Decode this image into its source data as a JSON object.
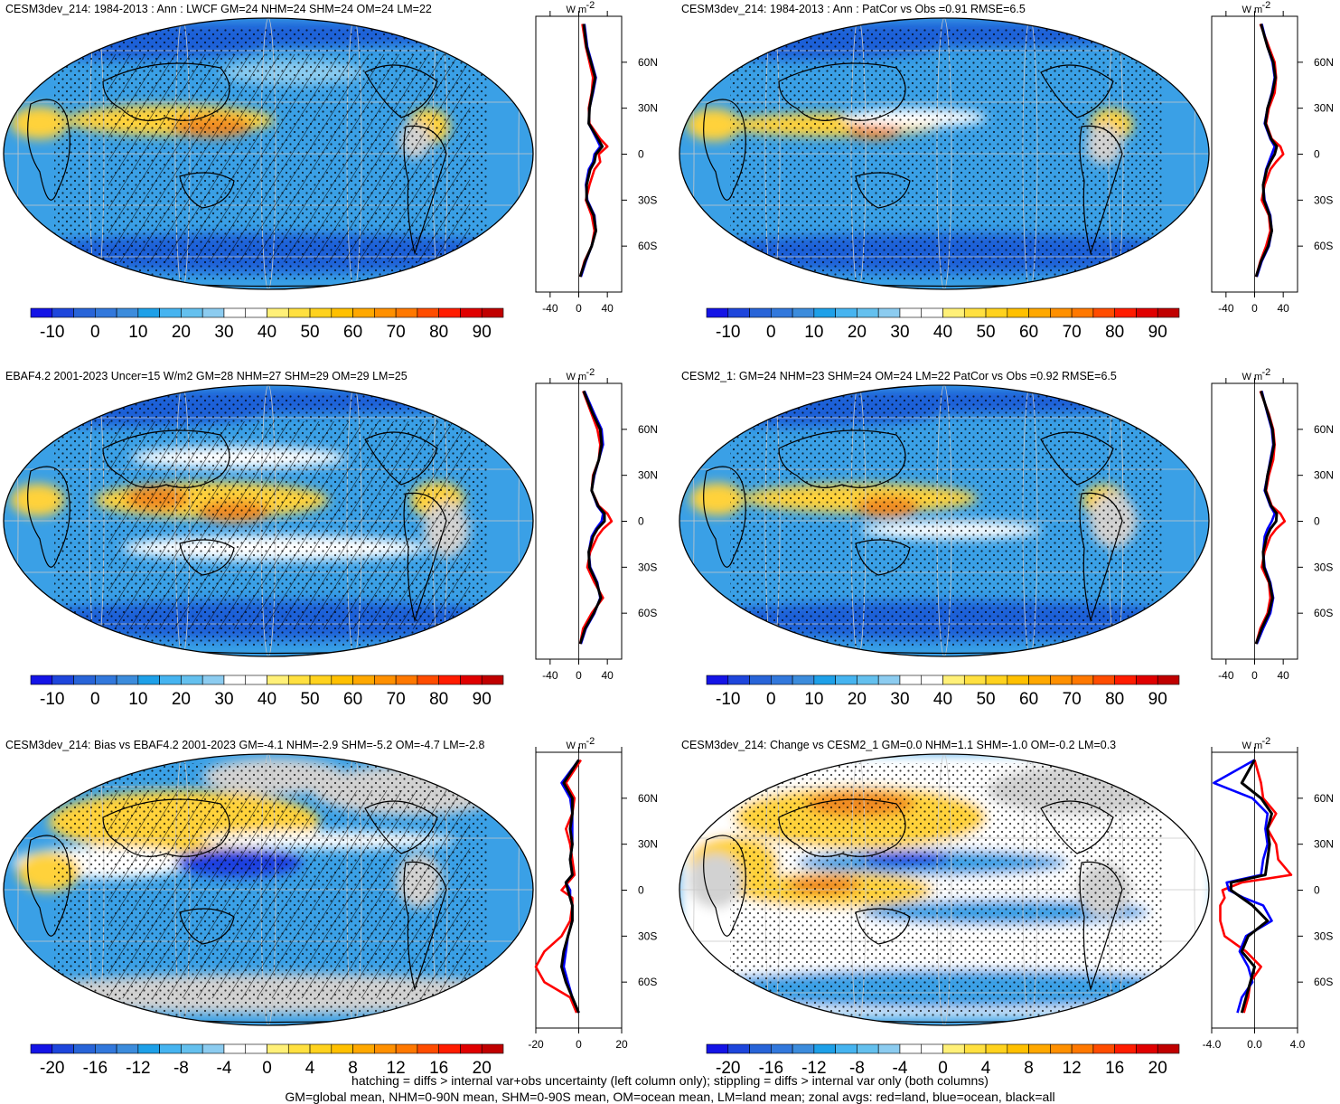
{
  "colors": {
    "ocean_mid": "#3aa0e6",
    "ocean_dark": "#1c60d8",
    "grey_land": "#d2d2d2",
    "positive_band": "#ffd23a",
    "hot": "#f08a20",
    "neg_blue": "#1c3fe0",
    "zonal_land": "#ff0000",
    "zonal_ocean": "#0000ff",
    "zonal_all": "#000000"
  },
  "palettes": {
    "abs": [
      "#1414e6",
      "#1e46dc",
      "#2864d8",
      "#3278dc",
      "#3c8cdc",
      "#1ea0e8",
      "#46b4f0",
      "#64c0ee",
      "#8cccf0",
      "#ffffff",
      "#ffffff",
      "#fff078",
      "#ffe040",
      "#ffd21e",
      "#ffc000",
      "#ffa800",
      "#ff9000",
      "#ff7800",
      "#ff4c00",
      "#ff1c00",
      "#e00000",
      "#c00000"
    ],
    "diff": [
      "#1414e6",
      "#1e46dc",
      "#2864d8",
      "#3278dc",
      "#3c8cdc",
      "#1ea0e8",
      "#46b4f0",
      "#64c0ee",
      "#8cccf0",
      "#ffffff",
      "#ffffff",
      "#fff078",
      "#ffe040",
      "#ffd21e",
      "#ffc000",
      "#ffa800",
      "#ff9000",
      "#ff7800",
      "#ff4c00",
      "#ff1c00",
      "#e00000",
      "#c00000"
    ]
  },
  "unit_label": "W m",
  "unit_sup": "-2",
  "chart_data": [
    {
      "type": "heatmap",
      "title": "CESM3dev_214: 1984-2013 : Ann : LWCF GM=24 NHM=24 SHM=24 OM=24 LM=22",
      "colorbar_ticks": [
        "-10",
        "0",
        "10",
        "20",
        "30",
        "40",
        "50",
        "60",
        "70",
        "80",
        "90"
      ],
      "lat_ticks": [
        "60N",
        "30N",
        "0",
        "30S",
        "60S"
      ],
      "zonal_xticks": [
        "-40",
        "0",
        "40"
      ],
      "zonal_xlim": [
        -60,
        60
      ],
      "stipple": true,
      "hatch": true,
      "scheme": "abs_a",
      "zonal": {
        "lat": [
          85,
          70,
          60,
          50,
          40,
          30,
          20,
          10,
          5,
          0,
          -5,
          -10,
          -20,
          -30,
          -40,
          -50,
          -60,
          -70,
          -80
        ],
        "land": [
          5,
          10,
          15,
          20,
          18,
          14,
          15,
          30,
          40,
          28,
          30,
          22,
          15,
          10,
          18,
          22,
          18,
          8,
          2
        ],
        "ocean": [
          8,
          12,
          18,
          24,
          20,
          15,
          14,
          25,
          30,
          22,
          20,
          14,
          10,
          12,
          22,
          24,
          18,
          10,
          3
        ],
        "all": [
          7,
          11,
          17,
          23,
          19,
          15,
          14,
          27,
          33,
          24,
          22,
          16,
          11,
          11,
          21,
          24,
          18,
          9,
          2
        ]
      }
    },
    {
      "type": "heatmap",
      "title": "CESM3dev_214: 1984-2013 : Ann : PatCor vs Obs =0.91 RMSE=6.5",
      "colorbar_ticks": [
        "-10",
        "0",
        "10",
        "20",
        "30",
        "40",
        "50",
        "60",
        "70",
        "80",
        "90"
      ],
      "lat_ticks": [
        "60N",
        "30N",
        "0",
        "30S",
        "60S"
      ],
      "zonal_xticks": [
        "-40",
        "0",
        "40"
      ],
      "zonal_xlim": [
        -60,
        60
      ],
      "stipple": true,
      "hatch": false,
      "scheme": "abs_b",
      "zonal": {
        "lat": [
          85,
          70,
          60,
          50,
          40,
          30,
          20,
          10,
          5,
          0,
          -5,
          -10,
          -20,
          -30,
          -40,
          -50,
          -60,
          -70,
          -80
        ],
        "land": [
          8,
          20,
          28,
          30,
          28,
          20,
          16,
          24,
          36,
          40,
          30,
          22,
          14,
          10,
          20,
          22,
          16,
          8,
          2
        ],
        "ocean": [
          10,
          18,
          25,
          28,
          24,
          18,
          14,
          22,
          28,
          24,
          20,
          16,
          12,
          14,
          22,
          24,
          20,
          10,
          3
        ],
        "all": [
          9,
          18,
          26,
          29,
          25,
          18,
          15,
          23,
          31,
          28,
          22,
          17,
          12,
          13,
          21,
          24,
          19,
          9,
          2
        ]
      }
    },
    {
      "type": "heatmap",
      "title": "EBAF4.2 2001-2023 Uncer=15 W/m2 GM=28 NHM=27 SHM=29 OM=29 LM=25",
      "colorbar_ticks": [
        "-10",
        "0",
        "10",
        "20",
        "30",
        "40",
        "50",
        "60",
        "70",
        "80",
        "90"
      ],
      "lat_ticks": [
        "60N",
        "30N",
        "0",
        "30S",
        "60S"
      ],
      "zonal_xticks": [
        "-40",
        "0",
        "40"
      ],
      "zonal_xlim": [
        -60,
        60
      ],
      "stipple": true,
      "hatch": true,
      "scheme": "abs_c",
      "zonal": {
        "lat": [
          85,
          70,
          60,
          50,
          40,
          30,
          20,
          10,
          5,
          0,
          -5,
          -10,
          -20,
          -30,
          -40,
          -50,
          -60,
          -70,
          -80
        ],
        "land": [
          6,
          18,
          26,
          30,
          28,
          20,
          18,
          28,
          40,
          46,
          34,
          26,
          16,
          12,
          22,
          34,
          18,
          6,
          2
        ],
        "ocean": [
          8,
          22,
          32,
          34,
          28,
          22,
          18,
          26,
          34,
          32,
          24,
          18,
          14,
          16,
          26,
          30,
          22,
          10,
          3
        ],
        "all": [
          7,
          20,
          30,
          32,
          28,
          21,
          18,
          27,
          36,
          36,
          26,
          20,
          14,
          15,
          25,
          31,
          21,
          9,
          2
        ]
      }
    },
    {
      "type": "heatmap",
      "title": "CESM2_1: GM=24 NHM=23 SHM=24 OM=24 LM=22 PatCor vs Obs =0.92 RMSE=6.5",
      "colorbar_ticks": [
        "-10",
        "0",
        "10",
        "20",
        "30",
        "40",
        "50",
        "60",
        "70",
        "80",
        "90"
      ],
      "lat_ticks": [
        "60N",
        "30N",
        "0",
        "30S",
        "60S"
      ],
      "zonal_xticks": [
        "-40",
        "0",
        "40"
      ],
      "zonal_xlim": [
        -60,
        60
      ],
      "stipple": true,
      "hatch": false,
      "scheme": "abs_d",
      "zonal": {
        "lat": [
          85,
          70,
          60,
          50,
          40,
          30,
          20,
          10,
          5,
          0,
          -5,
          -10,
          -20,
          -30,
          -40,
          -50,
          -60,
          -70,
          -80
        ],
        "land": [
          8,
          20,
          26,
          28,
          26,
          20,
          16,
          24,
          36,
          42,
          30,
          22,
          14,
          10,
          20,
          22,
          18,
          8,
          2
        ],
        "ocean": [
          10,
          18,
          24,
          26,
          22,
          18,
          14,
          22,
          28,
          24,
          18,
          14,
          12,
          14,
          22,
          26,
          22,
          12,
          3
        ],
        "all": [
          9,
          19,
          25,
          27,
          23,
          18,
          15,
          23,
          31,
          30,
          22,
          17,
          12,
          13,
          21,
          25,
          20,
          10,
          2
        ]
      }
    },
    {
      "type": "heatmap",
      "title": "CESM3dev_214: Bias vs EBAF4.2 2001-2023 GM=-4.1 NHM=-2.9 SHM=-5.2 OM=-4.7 LM=-2.8",
      "colorbar_ticks": [
        "-20",
        "-16",
        "-12",
        "-8",
        "-4",
        "0",
        "4",
        "8",
        "12",
        "16",
        "20"
      ],
      "lat_ticks": [
        "60N",
        "30N",
        "0",
        "30S",
        "60S"
      ],
      "zonal_xticks": [
        "-20",
        "0",
        "20"
      ],
      "zonal_xlim": [
        -20,
        20
      ],
      "stipple": true,
      "hatch": true,
      "scheme": "bias",
      "zonal": {
        "lat": [
          85,
          70,
          60,
          50,
          40,
          30,
          20,
          10,
          5,
          0,
          -5,
          -10,
          -20,
          -30,
          -40,
          -50,
          -60,
          -70,
          -80
        ],
        "land": [
          1,
          -6,
          -2,
          -3,
          -6,
          -4,
          -3,
          -2,
          -5,
          -8,
          -3,
          -3,
          -4,
          -8,
          -16,
          -20,
          -16,
          -4,
          -1
        ],
        "ocean": [
          0,
          -8,
          -4,
          -3,
          -3,
          -3,
          -4,
          -3,
          -6,
          -4,
          -4,
          -3,
          -3,
          -5,
          -6,
          -7,
          -5,
          -3,
          0
        ],
        "all": [
          0,
          -7,
          -3,
          -3,
          -4,
          -3,
          -4,
          -3,
          -6,
          -5,
          -4,
          -3,
          -3,
          -5,
          -7,
          -8,
          -6,
          -3,
          0
        ]
      }
    },
    {
      "type": "heatmap",
      "title": "CESM3dev_214: Change vs CESM2_1 GM=0.0 NHM=1.1 SHM=-1.0 OM=-0.2 LM=0.3",
      "colorbar_ticks": [
        "-20",
        "-16",
        "-12",
        "-8",
        "-4",
        "0",
        "4",
        "8",
        "12",
        "16",
        "20"
      ],
      "lat_ticks": [
        "60N",
        "30N",
        "0",
        "30S",
        "60S"
      ],
      "zonal_xticks": [
        "-4.0",
        "0.0",
        "4.0"
      ],
      "zonal_xlim": [
        -4,
        4
      ],
      "stipple": true,
      "hatch": false,
      "scheme": "change",
      "zonal": {
        "lat": [
          85,
          70,
          60,
          50,
          40,
          30,
          20,
          10,
          5,
          0,
          -5,
          -10,
          -20,
          -30,
          -40,
          -50,
          -60,
          -70,
          -80
        ],
        "land": [
          0,
          0.6,
          0.8,
          2.0,
          1.2,
          2.0,
          2.2,
          3.4,
          -1.2,
          -3.0,
          -2.8,
          -3.2,
          -3.2,
          -2.8,
          -0.8,
          0.6,
          -0.4,
          -0.6,
          -1.0
        ],
        "ocean": [
          0,
          -3.8,
          -0.2,
          1.2,
          1.0,
          1.2,
          0.8,
          0.6,
          -2.6,
          -2.4,
          -1.0,
          0.8,
          1.6,
          -0.8,
          -1.4,
          -0.6,
          -0.2,
          -1.2,
          -1.6
        ],
        "all": [
          0,
          -1.2,
          0.6,
          1.6,
          1.2,
          1.4,
          1.2,
          1.0,
          -2.2,
          -2.2,
          -1.2,
          -0.2,
          1.2,
          -0.6,
          -1.2,
          0.0,
          -0.4,
          -0.8,
          -1.2
        ]
      }
    }
  ],
  "footer": {
    "line1": "hatching = diffs > internal var+obs uncertainty (left column only); stippling = diffs > internal var only (both columns)",
    "line2": "GM=global mean, NHM=0-90N mean, SHM=0-90S mean, OM=ocean mean, LM=land mean; zonal avgs: red=land, blue=ocean, black=all"
  }
}
